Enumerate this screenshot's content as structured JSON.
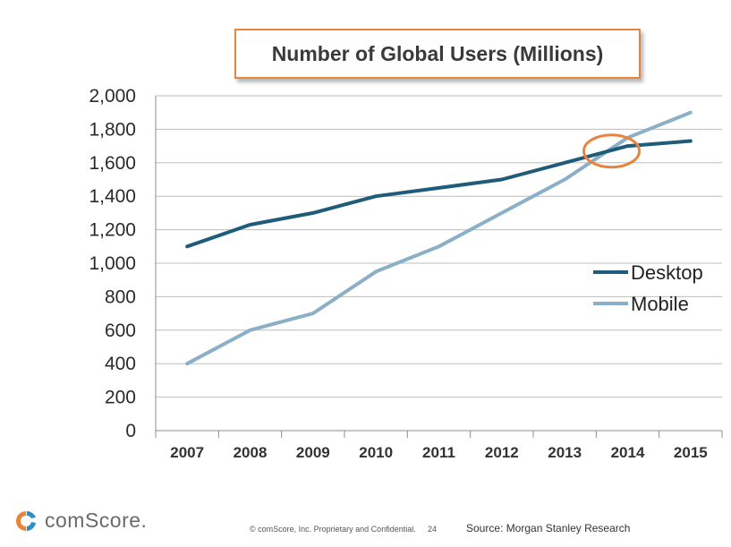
{
  "chart_data": {
    "type": "line",
    "title": "Number of Global Users (Millions)",
    "categories": [
      "2007",
      "2008",
      "2009",
      "2010",
      "2011",
      "2012",
      "2013",
      "2014",
      "2015"
    ],
    "series": [
      {
        "name": "Desktop",
        "color": "#1F5C7A",
        "values": [
          1100,
          1230,
          1300,
          1400,
          1450,
          1500,
          1600,
          1700,
          1730
        ]
      },
      {
        "name": "Mobile",
        "color": "#8AAFC6",
        "values": [
          400,
          600,
          700,
          950,
          1100,
          1300,
          1500,
          1750,
          1900
        ]
      }
    ],
    "ylim": [
      0,
      2000
    ],
    "yticks": [
      "0",
      "200",
      "400",
      "600",
      "800",
      "1,000",
      "1,200",
      "1,400",
      "1,600",
      "1,800",
      "2,000"
    ],
    "grid": true,
    "legend_position": "right",
    "annotation": {
      "type": "ellipse",
      "color": "#E8843B",
      "x": "2014",
      "y": 1670
    }
  },
  "footer": {
    "logo_text": "comScore.",
    "copyright": "© comScore, Inc.  Proprietary and Confidential.",
    "page_number": "24",
    "source": "Source: Morgan Stanley Research"
  },
  "colors": {
    "accent_orange": "#E8843B",
    "desktop": "#1F5C7A",
    "mobile": "#8AAFC6"
  }
}
